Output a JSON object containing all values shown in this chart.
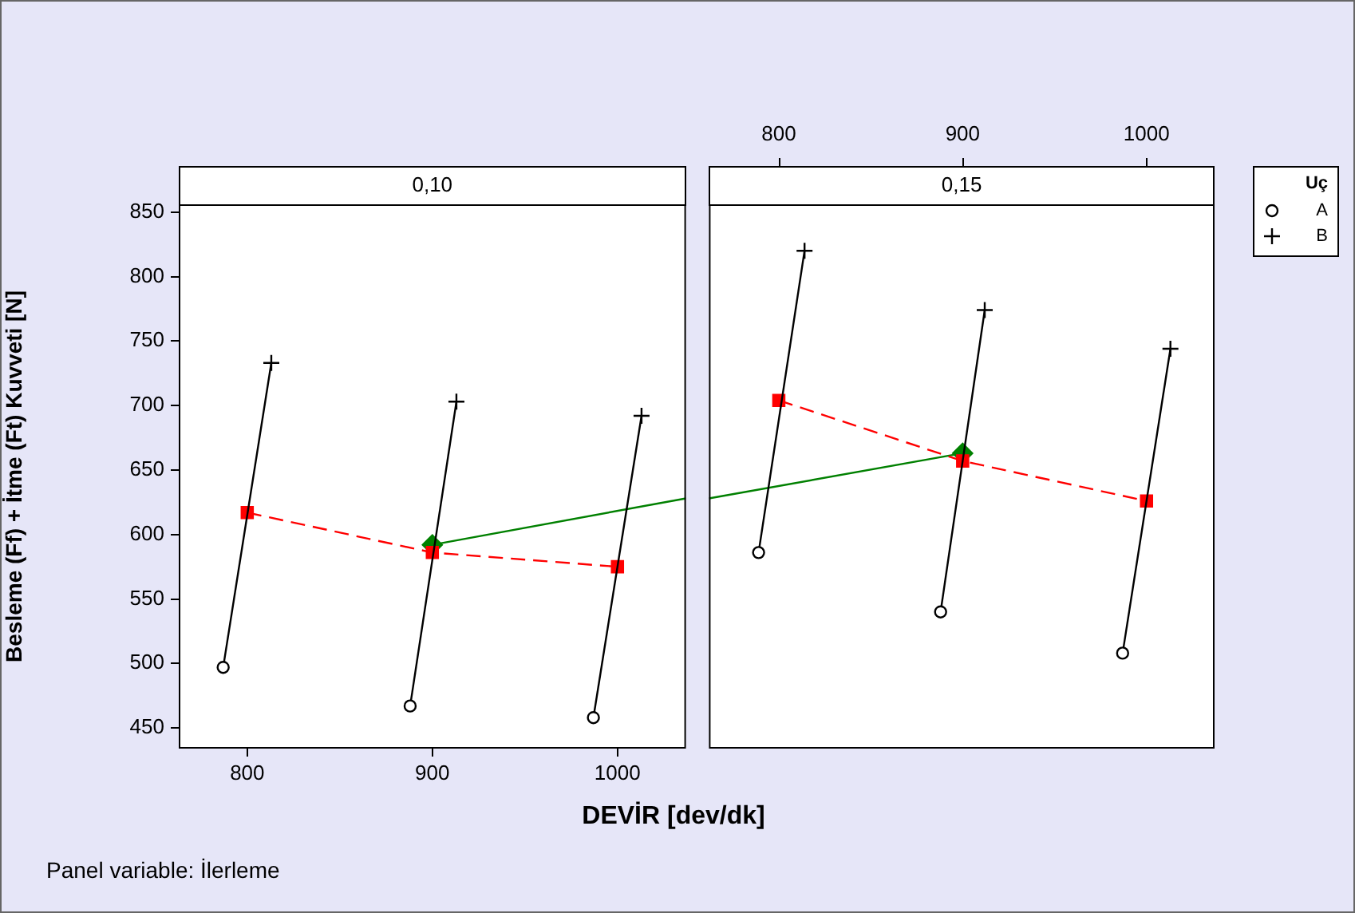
{
  "chart_data": [
    {
      "type": "line",
      "title": "0,10",
      "xlabel": "DEVİR [dev/dk]",
      "ylabel": "Besleme (Ff) + İtme (Ft) Kuvveti [N]",
      "xlim": [
        763,
        1037
      ],
      "xticks": [
        800,
        900,
        1000
      ],
      "ylim": [
        434,
        856
      ],
      "yticks": [
        450,
        500,
        550,
        600,
        650,
        700,
        750,
        800,
        850
      ],
      "grid": false,
      "annotations": [
        "Panel variable: İlerleme"
      ],
      "series": [
        {
          "type": "scatter",
          "marker": "circle",
          "color": "#000000",
          "x": [
            787,
            888,
            987
          ],
          "values": [
            497,
            467,
            458
          ]
        },
        {
          "type": "scatter",
          "marker": "cross",
          "color": "#000000",
          "x": [
            813,
            913,
            1013
          ],
          "values": [
            733,
            703,
            692
          ]
        },
        {
          "type": "line",
          "marker": "none",
          "color": "#000000",
          "x": [
            787,
            813
          ],
          "values": [
            497,
            733
          ]
        },
        {
          "type": "line",
          "marker": "none",
          "color": "#000000",
          "x": [
            888,
            913
          ],
          "values": [
            467,
            703
          ]
        },
        {
          "type": "line",
          "marker": "none",
          "color": "#000000",
          "x": [
            987,
            1013
          ],
          "values": [
            458,
            692
          ]
        },
        {
          "type": "line",
          "marker": "square",
          "line_style": "dashed",
          "color": "#ff0000",
          "x": [
            800,
            900,
            1000
          ],
          "values": [
            617,
            586,
            575
          ]
        },
        {
          "type": "line",
          "marker": "none",
          "color": "#008000",
          "x": [
            900,
            1037
          ],
          "values": [
            592,
            628
          ]
        },
        {
          "type": "scatter",
          "marker": "diamond",
          "color": "#008000",
          "x": [
            900
          ],
          "values": [
            592
          ]
        }
      ]
    },
    {
      "type": "line",
      "title": "0,15",
      "legend": "right",
      "legend_title": "Uç",
      "xlim": [
        762,
        1037
      ],
      "xticks": [
        800,
        900,
        1000
      ],
      "ylim": [
        434,
        856
      ],
      "tick_labels": "x",
      "grid": false,
      "series": [
        {
          "name": "A",
          "type": "scatter",
          "marker": "circle",
          "color": "#000000",
          "x": [
            789,
            888,
            987
          ],
          "values": [
            586,
            540,
            508
          ]
        },
        {
          "name": "B",
          "type": "scatter",
          "marker": "cross",
          "color": "#000000",
          "x": [
            814,
            912,
            1013
          ],
          "values": [
            820,
            774,
            744
          ]
        },
        {
          "type": "line",
          "marker": "none",
          "color": "#000000",
          "x": [
            789,
            814
          ],
          "values": [
            586,
            820
          ]
        },
        {
          "type": "line",
          "marker": "none",
          "color": "#000000",
          "x": [
            888,
            912
          ],
          "values": [
            540,
            774
          ]
        },
        {
          "type": "line",
          "marker": "none",
          "color": "#000000",
          "x": [
            987,
            1013
          ],
          "values": [
            508,
            744
          ]
        },
        {
          "type": "line",
          "marker": "square",
          "line_style": "dashed",
          "color": "#ff0000",
          "x": [
            800,
            900,
            1000
          ],
          "values": [
            704,
            657,
            626
          ]
        },
        {
          "type": "line",
          "marker": "none",
          "color": "#008000",
          "x": [
            762,
            900
          ],
          "values": [
            628,
            663
          ]
        },
        {
          "type": "scatter",
          "marker": "diamond",
          "color": "#008000",
          "x": [
            900
          ],
          "values": [
            663
          ]
        }
      ]
    }
  ]
}
